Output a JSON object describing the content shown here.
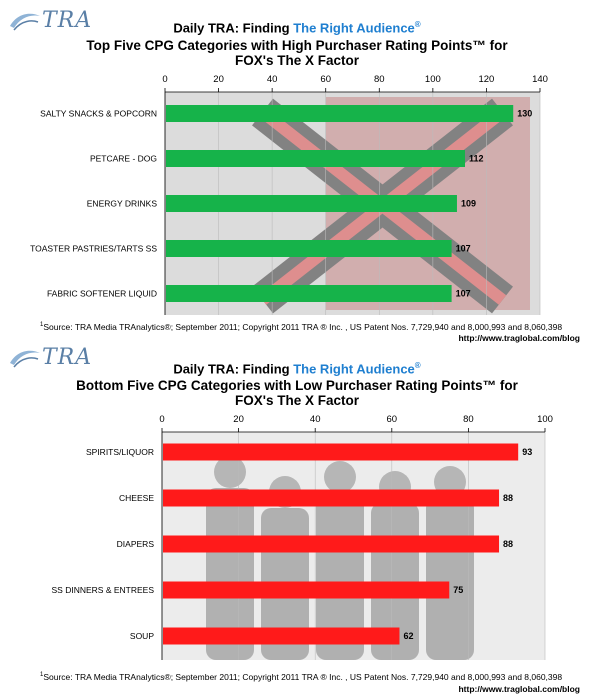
{
  "logo_text": "TRA",
  "panels": [
    {
      "title_line1_prefix": "Daily TRA: Finding ",
      "title_line1_highlight": "The Right Audience",
      "title_line1_mark": "®",
      "title_line2": "Top Five CPG Categories with High Purchaser Rating Points™ for",
      "title_line3": "FOX's The X Factor",
      "footnote_sup": "1",
      "footnote": "Source: TRA Media TRAnalytics®; September 2011; Copyright 2011 TRA ® Inc. , US Patent Nos. 7,729,940 and 8,000,993 and 8,060,398",
      "url": "http://www.traglobal.com/blog"
    },
    {
      "title_line1_prefix": "Daily TRA: Finding ",
      "title_line1_highlight": "The Right Audience",
      "title_line1_mark": "®",
      "title_line2": "Bottom Five CPG Categories with Low Purchaser Rating Points™ for",
      "title_line3": "FOX's The X Factor",
      "footnote_sup": "1",
      "footnote": "Source: TRA Media TRAnalytics®; September 2011; Copyright 2011 TRA ® Inc. , US Patent Nos. 7,729,940 and 8,000,993 and 8,060,398",
      "url": "http://www.traglobal.com/blog"
    }
  ],
  "chart_data": [
    {
      "type": "bar",
      "orientation": "horizontal",
      "categories": [
        "SALTY SNACKS & POPCORN",
        "PETCARE - DOG",
        "ENERGY DRINKS",
        "TOASTER PASTRIES/TARTS SS",
        "FABRIC SOFTENER LIQUID"
      ],
      "values": [
        130,
        112,
        109,
        107,
        107
      ],
      "xlim": [
        0,
        140
      ],
      "ticks": [
        0,
        20,
        40,
        60,
        80,
        100,
        120,
        140
      ],
      "bar_color": "#16b34a",
      "axis_position": "top",
      "data_labels": true,
      "background_image": "x-factor-logo"
    },
    {
      "type": "bar",
      "orientation": "horizontal",
      "categories": [
        "SPIRITS/LIQUOR",
        "CHEESE",
        "DIAPERS",
        "SS DINNERS & ENTREES",
        "SOUP"
      ],
      "values": [
        93,
        88,
        88,
        75,
        62
      ],
      "xlim": [
        0,
        100
      ],
      "ticks": [
        0,
        20,
        40,
        60,
        80,
        100
      ],
      "bar_color": "#ff1a1a",
      "axis_position": "top",
      "data_labels": true,
      "background_image": "x-factor-judges-photo"
    }
  ]
}
